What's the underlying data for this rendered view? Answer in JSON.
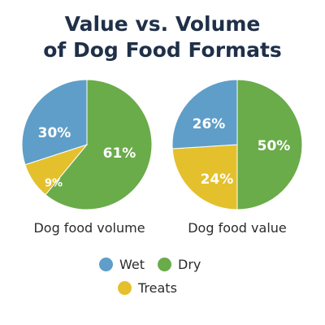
{
  "title": {
    "line1": "Value vs. Volume",
    "line2": "of Dog Food Formats"
  },
  "colors": {
    "wet": "#5f9ec8",
    "dry": "#6aab4a",
    "treats": "#e4c02d"
  },
  "chart_data": [
    {
      "type": "pie",
      "title": "",
      "caption": "Dog food volume",
      "slices": [
        {
          "name": "Wet",
          "value": 30,
          "label": "30%"
        },
        {
          "name": "Dry",
          "value": 61,
          "label": "61%"
        },
        {
          "name": "Treats",
          "value": 9,
          "label": "9%"
        }
      ]
    },
    {
      "type": "pie",
      "title": "",
      "caption": "Dog food value",
      "slices": [
        {
          "name": "Wet",
          "value": 26,
          "label": "26%"
        },
        {
          "name": "Dry",
          "value": 50,
          "label": "50%"
        },
        {
          "name": "Treats",
          "value": 24,
          "label": "24%"
        }
      ]
    }
  ],
  "legend": {
    "wet": "Wet",
    "dry": "Dry",
    "treats": "Treats"
  }
}
